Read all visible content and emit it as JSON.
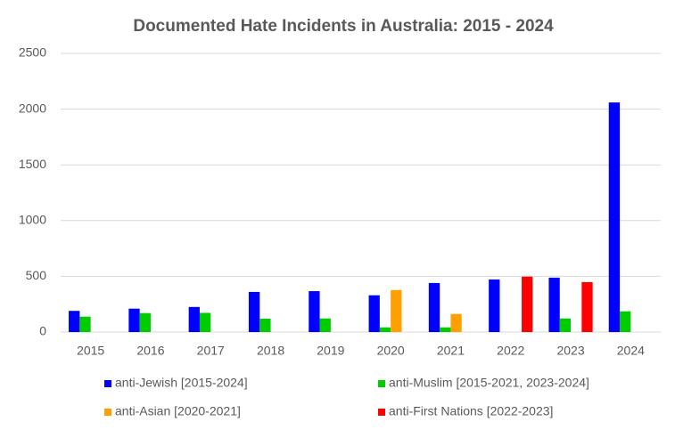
{
  "chart_data": {
    "type": "bar",
    "title": "Documented Hate Incidents in Australia: 2015 - 2024",
    "categories": [
      "2015",
      "2016",
      "2017",
      "2018",
      "2019",
      "2020",
      "2021",
      "2022",
      "2023",
      "2024"
    ],
    "series": [
      {
        "name": "anti-Jewish [2015-2024]",
        "color": "#0000ff",
        "values": [
          190,
          210,
          225,
          360,
          367,
          330,
          440,
          472,
          488,
          2060
        ]
      },
      {
        "name": "anti-Muslim [2015-2021, 2023-2024]",
        "color": "#00cc00",
        "values": [
          138,
          170,
          172,
          120,
          122,
          42,
          42,
          null,
          122,
          186
        ]
      },
      {
        "name": "anti-Asian [2020-2021]",
        "color": "#ffa000",
        "values": [
          null,
          null,
          null,
          null,
          null,
          377,
          162,
          null,
          null,
          null
        ]
      },
      {
        "name": "anti-First Nations [2022-2023]",
        "color": "#ff0000",
        "values": [
          null,
          null,
          null,
          null,
          null,
          null,
          null,
          497,
          448,
          null
        ]
      }
    ],
    "ylim": [
      0,
      2500
    ],
    "yticks": [
      0,
      500,
      1000,
      1500,
      2000,
      2500
    ],
    "grid": true,
    "legend": "bottom"
  }
}
